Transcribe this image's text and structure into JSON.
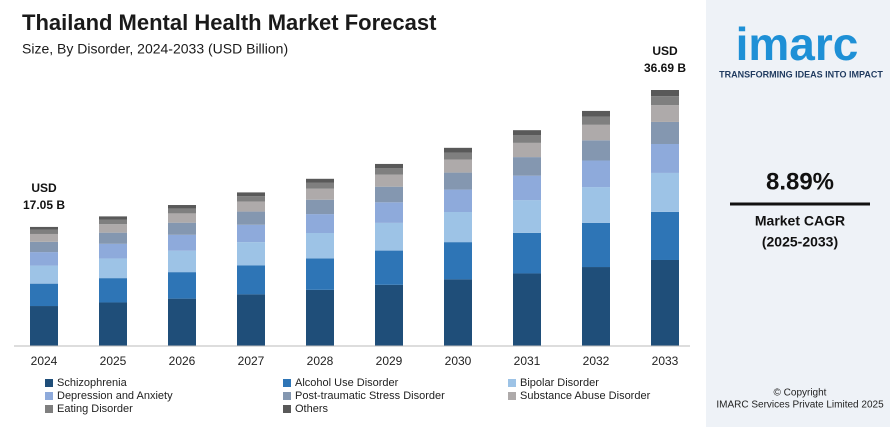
{
  "chart_data": {
    "type": "stacked_bar",
    "title": "Thailand Mental Health Market Forecast",
    "subtitle": "Size, By Disorder, 2024-2033 (USD Billion)",
    "categories": [
      "2024",
      "2025",
      "2026",
      "2027",
      "2028",
      "2029",
      "2030",
      "2031",
      "2032",
      "2033"
    ],
    "series": [
      {
        "name": "Schizophrenia",
        "color": "#1f4e79",
        "values": [
          5.73,
          6.24,
          6.79,
          7.4,
          8.05,
          8.77,
          9.55,
          10.4,
          11.32,
          12.33
        ]
      },
      {
        "name": "Alcohol Use Disorder",
        "color": "#2e75b6",
        "values": [
          3.21,
          3.49,
          3.8,
          4.14,
          4.51,
          4.91,
          5.34,
          5.82,
          6.34,
          6.9
        ]
      },
      {
        "name": "Bipolar Disorder",
        "color": "#9dc3e6",
        "values": [
          2.59,
          2.82,
          3.07,
          3.35,
          3.64,
          3.97,
          4.32,
          4.7,
          5.12,
          5.58
        ]
      },
      {
        "name": "Depression and Anxiety",
        "color": "#8eaadb",
        "values": [
          1.93,
          2.1,
          2.28,
          2.49,
          2.71,
          2.95,
          3.21,
          3.5,
          3.81,
          4.15
        ]
      },
      {
        "name": "Post-traumatic Stress Disorder",
        "color": "#8497b0",
        "values": [
          1.47,
          1.6,
          1.74,
          1.89,
          2.06,
          2.24,
          2.44,
          2.66,
          2.9,
          3.16
        ]
      },
      {
        "name": "Substance Abuse Disorder",
        "color": "#aeaaaa",
        "values": [
          1.13,
          1.23,
          1.33,
          1.45,
          1.58,
          1.72,
          1.88,
          2.04,
          2.22,
          2.42
        ]
      },
      {
        "name": "Eating Disorder",
        "color": "#7f7f7f",
        "values": [
          0.6,
          0.65,
          0.71,
          0.77,
          0.84,
          0.91,
          0.99,
          1.08,
          1.18,
          1.28
        ]
      },
      {
        "name": "Others",
        "color": "#595959",
        "values": [
          0.41,
          0.45,
          0.49,
          0.53,
          0.58,
          0.63,
          0.68,
          0.74,
          0.81,
          0.88
        ]
      }
    ],
    "annotations": [
      {
        "category": 0,
        "lines": [
          "USD",
          "17.05 B"
        ]
      },
      {
        "category": 9,
        "lines": [
          "USD",
          "36.69 B"
        ]
      }
    ]
  },
  "side_panel": {
    "logo": "imarc",
    "tagline": "TRANSFORMING IDEAS INTO IMPACT",
    "cagr": "8.89%",
    "cagr_label": "Market CAGR",
    "cagr_period": "(2025-2033)",
    "copyright": "© Copyright",
    "company": "IMARC Services Private Limited 2025"
  }
}
